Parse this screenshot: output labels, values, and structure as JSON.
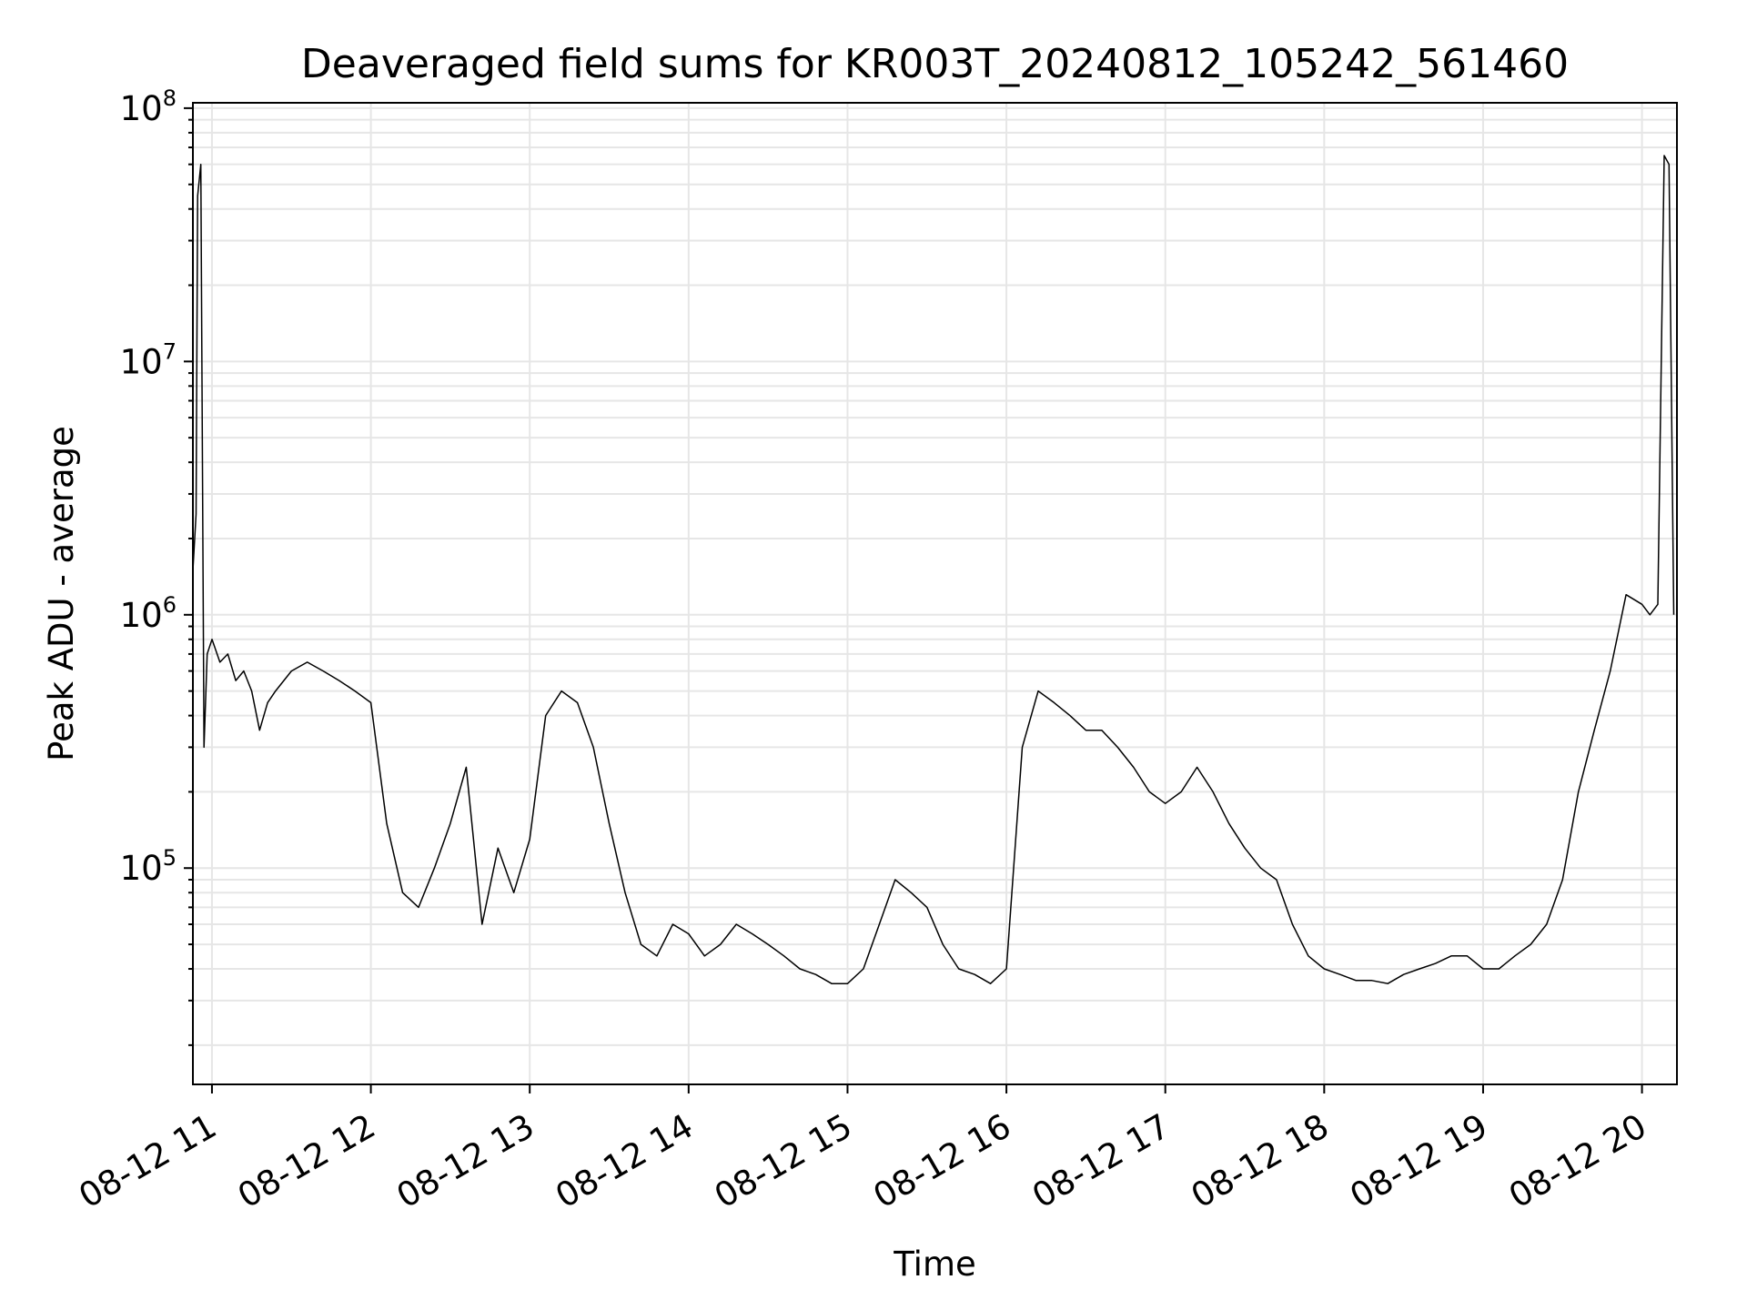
{
  "chart_data": {
    "type": "line",
    "title": "Deaveraged field sums for KR003T_20240812_105242_561460",
    "xlabel": "Time",
    "ylabel": "Peak ADU - average",
    "yscale": "log",
    "ylim": [
      14000,
      105000000
    ],
    "xlim_hours": [
      10.88,
      20.22
    ],
    "grid": true,
    "line_color": "#000000",
    "grid_color": "#e6e6e6",
    "xticks": [
      {
        "hour": 11,
        "label": "08-12 11"
      },
      {
        "hour": 12,
        "label": "08-12 12"
      },
      {
        "hour": 13,
        "label": "08-12 13"
      },
      {
        "hour": 14,
        "label": "08-12 14"
      },
      {
        "hour": 15,
        "label": "08-12 15"
      },
      {
        "hour": 16,
        "label": "08-12 16"
      },
      {
        "hour": 17,
        "label": "08-12 17"
      },
      {
        "hour": 18,
        "label": "08-12 18"
      },
      {
        "hour": 19,
        "label": "08-12 19"
      },
      {
        "hour": 20,
        "label": "08-12 20"
      }
    ],
    "yticks": [
      {
        "exp": 5,
        "base": "10",
        "sup": "5"
      },
      {
        "exp": 6,
        "base": "10",
        "sup": "6"
      },
      {
        "exp": 7,
        "base": "10",
        "sup": "7"
      },
      {
        "exp": 8,
        "base": "10",
        "sup": "8"
      }
    ],
    "series": [
      {
        "x_hours": [
          10.88,
          10.9,
          10.91,
          10.93,
          10.95,
          10.97,
          11.0,
          11.05,
          11.1,
          11.15,
          11.2,
          11.25,
          11.3,
          11.35,
          11.4,
          11.5,
          11.6,
          11.7,
          11.8,
          11.9,
          12.0,
          12.1,
          12.2,
          12.3,
          12.4,
          12.5,
          12.6,
          12.7,
          12.8,
          12.9,
          13.0,
          13.1,
          13.2,
          13.3,
          13.4,
          13.5,
          13.6,
          13.7,
          13.8,
          13.9,
          14.0,
          14.1,
          14.2,
          14.3,
          14.4,
          14.5,
          14.6,
          14.7,
          14.8,
          14.9,
          15.0,
          15.1,
          15.2,
          15.3,
          15.4,
          15.5,
          15.6,
          15.7,
          15.8,
          15.9,
          16.0,
          16.1,
          16.2,
          16.3,
          16.4,
          16.5,
          16.6,
          16.7,
          16.8,
          16.9,
          17.0,
          17.1,
          17.2,
          17.3,
          17.4,
          17.5,
          17.6,
          17.7,
          17.8,
          17.9,
          18.0,
          18.1,
          18.2,
          18.3,
          18.4,
          18.5,
          18.6,
          18.7,
          18.8,
          18.9,
          19.0,
          19.1,
          19.2,
          19.3,
          19.4,
          19.5,
          19.6,
          19.7,
          19.8,
          19.9,
          20.0,
          20.05,
          20.1,
          20.14,
          20.17,
          20.2
        ],
        "y": [
          1500000,
          2500000,
          45000000,
          60000000,
          300000,
          700000,
          800000,
          650000,
          700000,
          550000,
          600000,
          500000,
          350000,
          450000,
          500000,
          600000,
          650000,
          600000,
          550000,
          500000,
          450000,
          150000,
          80000,
          70000,
          100000,
          150000,
          250000,
          60000,
          120000,
          80000,
          130000,
          400000,
          500000,
          450000,
          300000,
          150000,
          80000,
          50000,
          45000,
          60000,
          55000,
          45000,
          50000,
          60000,
          55000,
          50000,
          45000,
          40000,
          38000,
          35000,
          35000,
          40000,
          60000,
          90000,
          80000,
          70000,
          50000,
          40000,
          38000,
          35000,
          40000,
          300000,
          500000,
          450000,
          400000,
          350000,
          350000,
          300000,
          250000,
          200000,
          180000,
          200000,
          250000,
          200000,
          150000,
          120000,
          100000,
          90000,
          60000,
          45000,
          40000,
          38000,
          36000,
          36000,
          35000,
          38000,
          40000,
          42000,
          45000,
          45000,
          40000,
          40000,
          45000,
          50000,
          60000,
          90000,
          200000,
          350000,
          600000,
          1200000,
          1100000,
          1000000,
          1100000,
          65000000,
          60000000,
          1000000
        ]
      }
    ]
  }
}
